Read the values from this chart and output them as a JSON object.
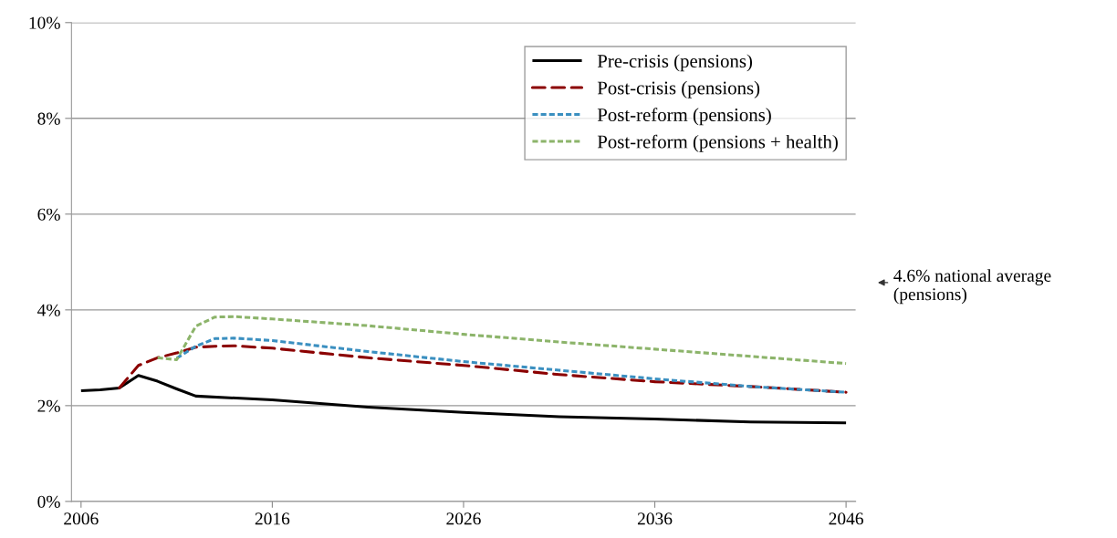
{
  "chart_data": {
    "type": "line",
    "series": [
      {
        "name": "Pre-crisis (pensions)",
        "color": "#000000",
        "line_style": "solid",
        "x": [
          2006,
          2007,
          2008,
          2009,
          2010,
          2011,
          2012,
          2016,
          2021,
          2026,
          2031,
          2036,
          2041,
          2046
        ],
        "values": [
          2.31,
          2.33,
          2.37,
          2.63,
          2.51,
          2.35,
          2.2,
          2.12,
          1.97,
          1.86,
          1.77,
          1.72,
          1.66,
          1.64
        ]
      },
      {
        "name": "Post-crisis (pensions)",
        "color": "#8b0000",
        "line_style": "dashed",
        "x": [
          2008,
          2009,
          2010,
          2011,
          2012,
          2013,
          2014,
          2016,
          2021,
          2026,
          2031,
          2036,
          2041,
          2046
        ],
        "values": [
          2.37,
          2.84,
          3.0,
          3.1,
          3.22,
          3.24,
          3.25,
          3.2,
          3.0,
          2.84,
          2.65,
          2.5,
          2.4,
          2.28
        ]
      },
      {
        "name": "Post-reform (pensions)",
        "color": "#3a8fc0",
        "line_style": "dotted",
        "x": [
          2011,
          2012,
          2013,
          2014,
          2016,
          2021,
          2026,
          2031,
          2036,
          2041,
          2046
        ],
        "values": [
          2.99,
          3.24,
          3.4,
          3.41,
          3.36,
          3.13,
          2.92,
          2.74,
          2.56,
          2.4,
          2.28
        ]
      },
      {
        "name": "Post-reform (pensions + health)",
        "color": "#8cb46a",
        "line_style": "dotted",
        "x": [
          2010,
          2011,
          2012,
          2013,
          2014,
          2016,
          2021,
          2026,
          2031,
          2036,
          2041,
          2046
        ],
        "values": [
          3.0,
          2.96,
          3.66,
          3.85,
          3.86,
          3.81,
          3.67,
          3.49,
          3.33,
          3.18,
          3.03,
          2.88
        ]
      }
    ],
    "xlim": [
      2005.5,
      2046.5
    ],
    "xticks": [
      2006,
      2016,
      2026,
      2036,
      2046
    ],
    "ylim": [
      0,
      10
    ],
    "yticks": [
      {
        "value": 0,
        "label": "0%"
      },
      {
        "value": 2,
        "label": "2%"
      },
      {
        "value": 4,
        "label": "4%"
      },
      {
        "value": 6,
        "label": "6%"
      },
      {
        "value": 8,
        "label": "8%"
      },
      {
        "value": 10,
        "label": "10%"
      }
    ],
    "grid": "y",
    "legend": "top right",
    "marker": "none",
    "annotations": [
      "4.6% national average (pensions)"
    ]
  }
}
